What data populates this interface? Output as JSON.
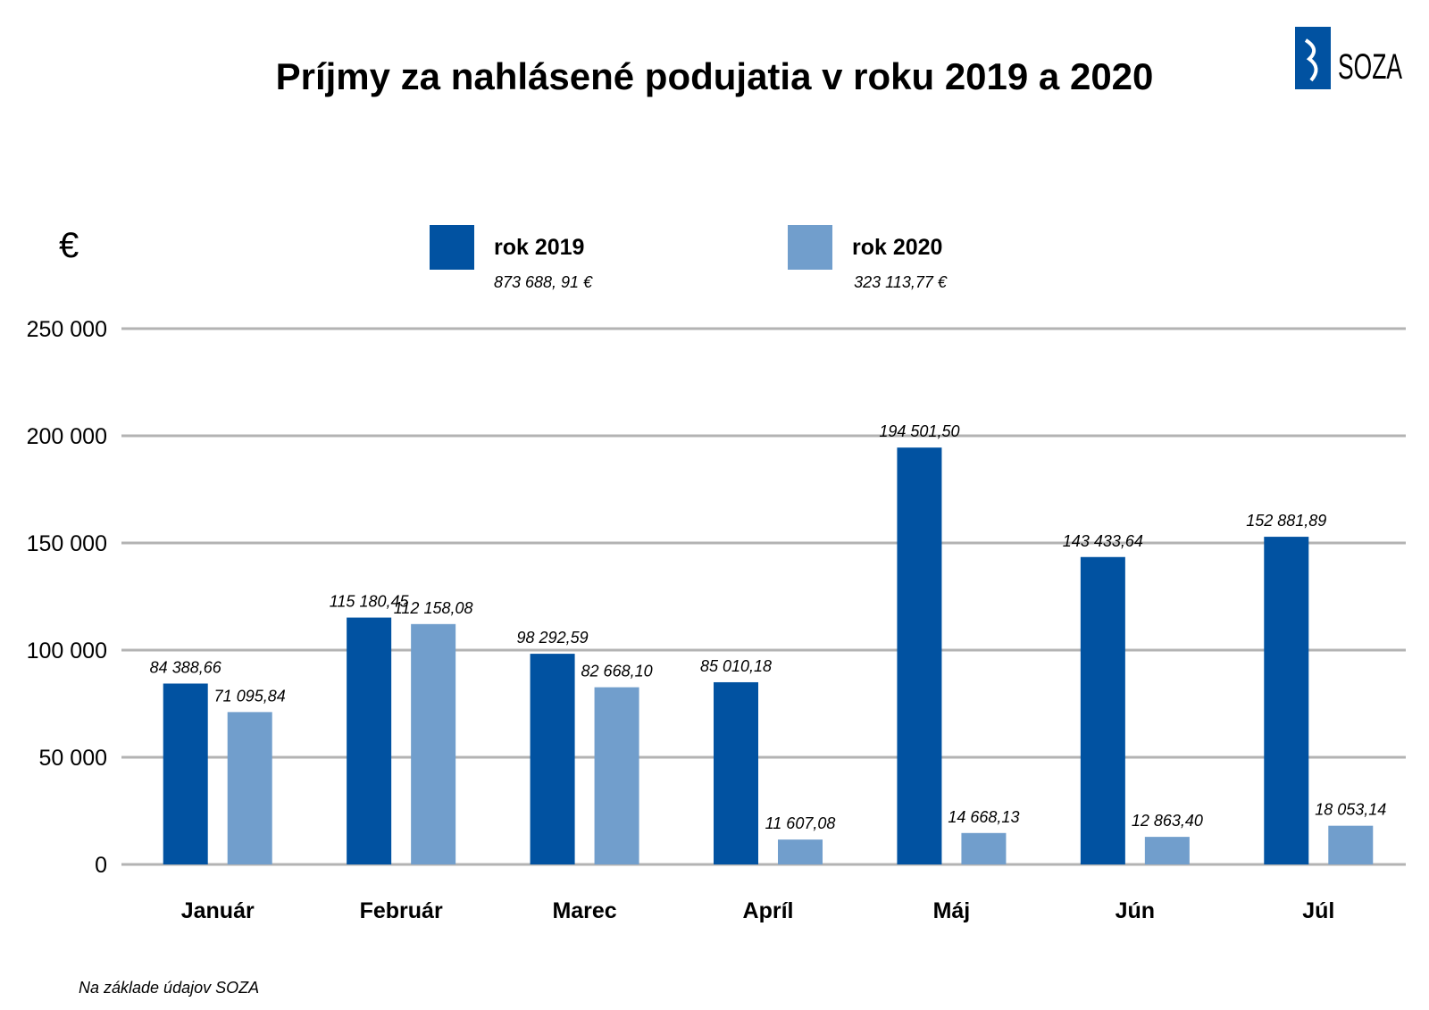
{
  "chart_data": {
    "type": "bar",
    "title": "Príjmy za nahlásené podujatia v roku 2019 a 2020",
    "unit_label": "€",
    "categories": [
      "Január",
      "Február",
      "Marec",
      "Apríl",
      "Máj",
      "Jún",
      "Júl"
    ],
    "series": [
      {
        "name": "rok 2019",
        "total_label": "873 688, 91 €",
        "color": "#0152a1",
        "values": [
          84388.66,
          115180.45,
          98292.59,
          85010.18,
          194501.5,
          143433.64,
          152881.89
        ],
        "labels": [
          "84 388,66",
          "115 180,45",
          "98 292,59",
          "85 010,18",
          "194 501,50",
          "143 433,64",
          "152 881,89"
        ]
      },
      {
        "name": "rok 2020",
        "total_label": "323 113,77 €",
        "color": "#719ecc",
        "values": [
          71095.84,
          112158.08,
          82668.1,
          11607.08,
          14668.13,
          12863.4,
          18053.14
        ],
        "labels": [
          "71 095,84",
          "112 158,08",
          "82 668,10",
          "11 607,08",
          "14 668,13",
          "12 863,40",
          "18 053,14"
        ]
      }
    ],
    "ylim": [
      0,
      250000
    ],
    "yticks": [
      0,
      50000,
      100000,
      150000,
      200000,
      250000
    ],
    "ytick_labels": [
      "0",
      "50 000",
      "100 000",
      "150 000",
      "200 000",
      "250 000"
    ],
    "grid": true,
    "legend_position": "top-center"
  },
  "source_note": "Na základe údajov SOZA",
  "logo": {
    "text": "SOZA",
    "color": "#0152a1"
  }
}
